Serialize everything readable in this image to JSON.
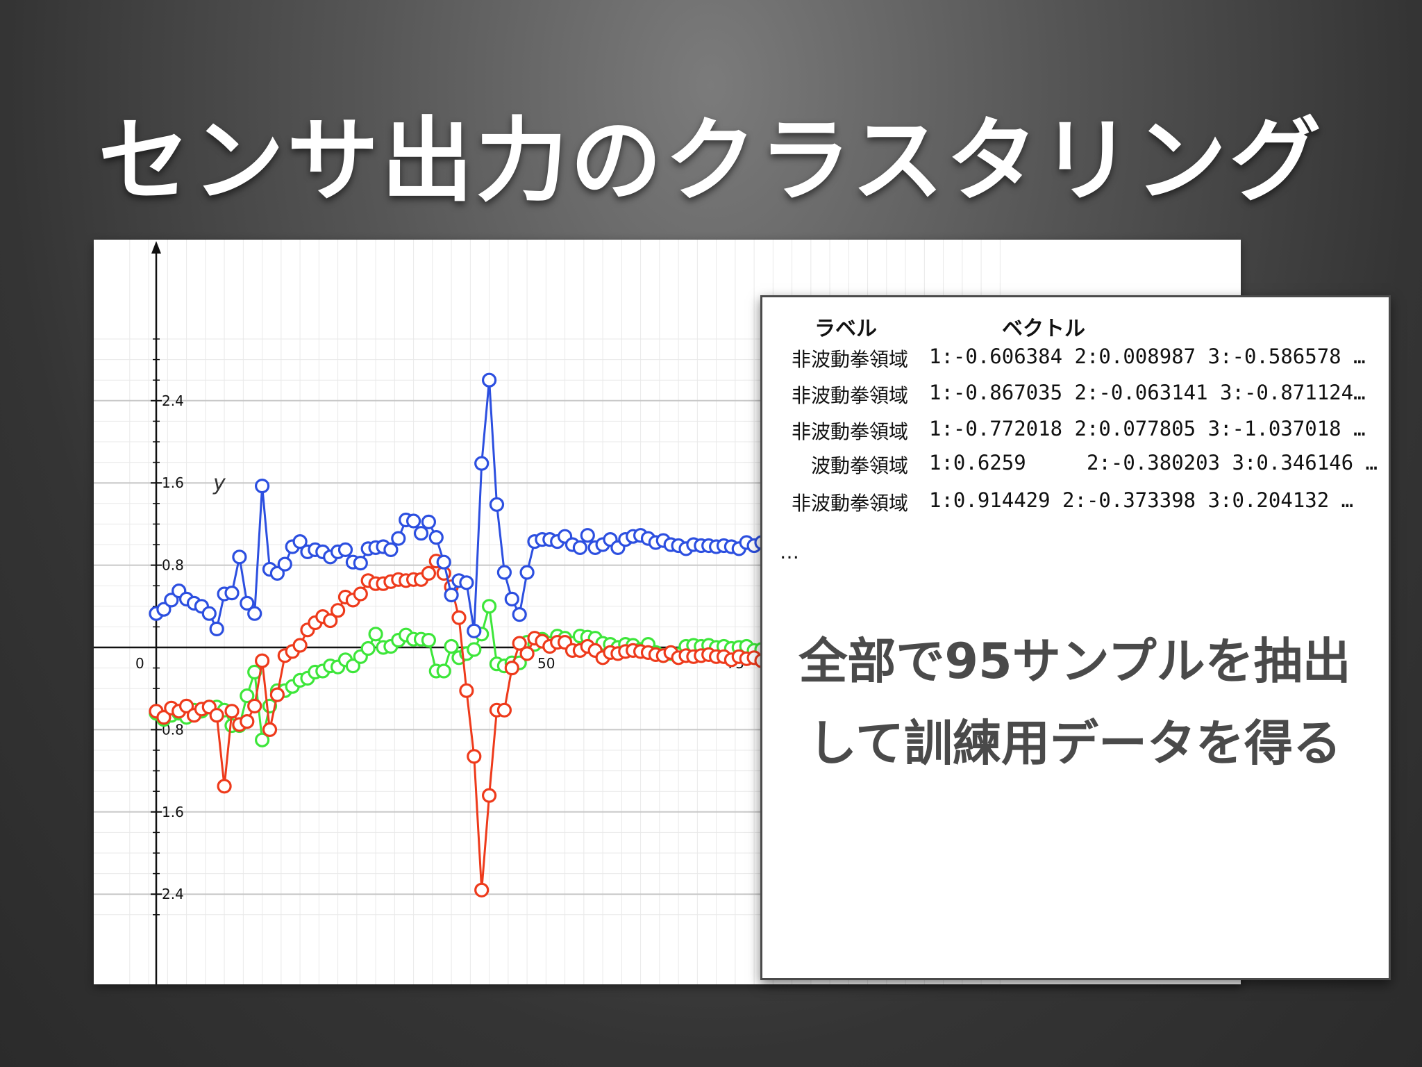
{
  "slide": {
    "title": "センサ出力のクラスタリング"
  },
  "chart_data": {
    "type": "scatter",
    "y_ticks": [
      "2.4",
      "1.6",
      "0.8",
      "0.8",
      "1.6",
      "2.4"
    ],
    "x_tick_labels": [
      "0",
      "50",
      "75"
    ],
    "ylabel": "y",
    "xlim": [
      -3,
      113
    ],
    "ylim": [
      -2.6,
      3.1
    ],
    "grid": true,
    "colors": {
      "blue": "#2c4fe0",
      "red": "#ee3a1b",
      "green": "#3de63a"
    },
    "series": [
      {
        "color": "#2c4fe0",
        "points": [
          [
            0,
            0.33
          ],
          [
            1,
            0.37
          ],
          [
            2,
            0.46
          ],
          [
            3,
            0.55
          ],
          [
            4,
            0.47
          ],
          [
            5,
            0.43
          ],
          [
            6,
            0.4
          ],
          [
            7,
            0.33
          ],
          [
            8,
            0.18
          ],
          [
            9,
            0.52
          ],
          [
            10,
            0.53
          ],
          [
            11,
            0.88
          ],
          [
            12,
            0.43
          ],
          [
            13,
            0.33
          ],
          [
            14,
            1.57
          ],
          [
            15,
            0.76
          ],
          [
            16,
            0.72
          ],
          [
            17,
            0.81
          ],
          [
            18,
            0.98
          ],
          [
            19,
            1.03
          ],
          [
            20,
            0.93
          ],
          [
            21,
            0.95
          ],
          [
            22,
            0.93
          ],
          [
            23,
            0.88
          ],
          [
            24,
            0.93
          ],
          [
            25,
            0.95
          ],
          [
            26,
            0.83
          ],
          [
            27,
            0.82
          ],
          [
            28,
            0.96
          ],
          [
            29,
            0.97
          ],
          [
            30,
            0.98
          ],
          [
            31,
            0.95
          ],
          [
            32,
            1.06
          ],
          [
            33,
            1.24
          ],
          [
            34,
            1.23
          ],
          [
            35,
            1.11
          ],
          [
            36,
            1.22
          ],
          [
            37,
            1.07
          ],
          [
            38,
            0.83
          ],
          [
            39,
            0.51
          ],
          [
            40,
            0.65
          ],
          [
            41,
            0.63
          ],
          [
            42,
            0.16
          ],
          [
            43,
            1.79
          ],
          [
            44,
            2.6
          ],
          [
            45,
            1.39
          ],
          [
            46,
            0.73
          ],
          [
            47,
            0.47
          ],
          [
            48,
            0.32
          ],
          [
            49,
            0.73
          ],
          [
            50,
            1.03
          ],
          [
            51,
            1.05
          ],
          [
            52,
            1.05
          ],
          [
            53,
            1.03
          ],
          [
            54,
            1.08
          ],
          [
            55,
            1.0
          ],
          [
            56,
            0.97
          ],
          [
            57,
            1.09
          ],
          [
            58,
            0.97
          ],
          [
            59,
            1.0
          ],
          [
            60,
            1.05
          ],
          [
            61,
            0.97
          ],
          [
            62,
            1.05
          ],
          [
            63,
            1.08
          ],
          [
            64,
            1.09
          ],
          [
            65,
            1.06
          ],
          [
            66,
            1.02
          ],
          [
            67,
            1.04
          ],
          [
            68,
            1.0
          ],
          [
            69,
            0.99
          ],
          [
            70,
            0.96
          ],
          [
            71,
            1.0
          ],
          [
            72,
            0.99
          ],
          [
            73,
            0.99
          ],
          [
            74,
            0.98
          ],
          [
            75,
            0.99
          ],
          [
            76,
            0.98
          ],
          [
            77,
            0.96
          ],
          [
            78,
            1.02
          ],
          [
            79,
            0.99
          ],
          [
            80,
            1.02
          ]
        ]
      },
      {
        "color": "#ee3a1b",
        "points": [
          [
            0,
            -0.62
          ],
          [
            1,
            -0.68
          ],
          [
            2,
            -0.59
          ],
          [
            3,
            -0.62
          ],
          [
            4,
            -0.57
          ],
          [
            5,
            -0.66
          ],
          [
            6,
            -0.6
          ],
          [
            7,
            -0.58
          ],
          [
            8,
            -0.66
          ],
          [
            9,
            -1.35
          ],
          [
            10,
            -0.62
          ],
          [
            11,
            -0.75
          ],
          [
            12,
            -0.72
          ],
          [
            13,
            -0.57
          ],
          [
            14,
            -0.13
          ],
          [
            15,
            -0.8
          ],
          [
            16,
            -0.46
          ],
          [
            17,
            -0.08
          ],
          [
            18,
            -0.04
          ],
          [
            19,
            0.02
          ],
          [
            20,
            0.17
          ],
          [
            21,
            0.24
          ],
          [
            22,
            0.3
          ],
          [
            23,
            0.26
          ],
          [
            24,
            0.36
          ],
          [
            25,
            0.49
          ],
          [
            26,
            0.46
          ],
          [
            27,
            0.52
          ],
          [
            28,
            0.65
          ],
          [
            29,
            0.62
          ],
          [
            30,
            0.62
          ],
          [
            31,
            0.64
          ],
          [
            32,
            0.66
          ],
          [
            33,
            0.65
          ],
          [
            34,
            0.66
          ],
          [
            35,
            0.66
          ],
          [
            36,
            0.72
          ],
          [
            37,
            0.84
          ],
          [
            38,
            0.72
          ],
          [
            39,
            0.59
          ],
          [
            40,
            0.29
          ],
          [
            41,
            -0.42
          ],
          [
            42,
            -1.06
          ],
          [
            43,
            -2.36
          ],
          [
            44,
            -1.44
          ],
          [
            45,
            -0.61
          ],
          [
            46,
            -0.61
          ],
          [
            47,
            -0.2
          ],
          [
            48,
            0.04
          ],
          [
            49,
            -0.06
          ],
          [
            50,
            0.09
          ],
          [
            51,
            0.06
          ],
          [
            52,
            0.01
          ],
          [
            53,
            0.05
          ],
          [
            54,
            0.05
          ],
          [
            55,
            -0.03
          ],
          [
            56,
            -0.03
          ],
          [
            57,
            0.01
          ],
          [
            58,
            -0.03
          ],
          [
            59,
            -0.1
          ],
          [
            60,
            -0.05
          ],
          [
            61,
            -0.06
          ],
          [
            62,
            -0.04
          ],
          [
            63,
            -0.03
          ],
          [
            64,
            -0.04
          ],
          [
            65,
            -0.05
          ],
          [
            66,
            -0.07
          ],
          [
            67,
            -0.08
          ],
          [
            68,
            -0.05
          ],
          [
            69,
            -0.1
          ],
          [
            70,
            -0.08
          ],
          [
            71,
            -0.09
          ],
          [
            72,
            -0.08
          ],
          [
            73,
            -0.07
          ],
          [
            74,
            -0.09
          ],
          [
            75,
            -0.09
          ],
          [
            76,
            -0.12
          ],
          [
            77,
            -0.09
          ],
          [
            78,
            -0.11
          ],
          [
            79,
            -0.1
          ],
          [
            80,
            -0.13
          ]
        ]
      },
      {
        "color": "#3de63a",
        "points": [
          [
            0,
            -0.64
          ],
          [
            1,
            -0.7
          ],
          [
            2,
            -0.66
          ],
          [
            3,
            -0.64
          ],
          [
            4,
            -0.68
          ],
          [
            5,
            -0.61
          ],
          [
            6,
            -0.62
          ],
          [
            7,
            -0.58
          ],
          [
            8,
            -0.58
          ],
          [
            9,
            -0.61
          ],
          [
            10,
            -0.76
          ],
          [
            11,
            -0.76
          ],
          [
            12,
            -0.47
          ],
          [
            13,
            -0.24
          ],
          [
            14,
            -0.9
          ],
          [
            15,
            -0.57
          ],
          [
            16,
            -0.42
          ],
          [
            17,
            -0.42
          ],
          [
            18,
            -0.38
          ],
          [
            19,
            -0.32
          ],
          [
            20,
            -0.3
          ],
          [
            21,
            -0.24
          ],
          [
            22,
            -0.23
          ],
          [
            23,
            -0.18
          ],
          [
            24,
            -0.19
          ],
          [
            25,
            -0.12
          ],
          [
            26,
            -0.18
          ],
          [
            27,
            -0.09
          ],
          [
            28,
            -0.01
          ],
          [
            29,
            0.13
          ],
          [
            30,
            0.0
          ],
          [
            31,
            0.01
          ],
          [
            32,
            0.07
          ],
          [
            33,
            0.12
          ],
          [
            34,
            0.08
          ],
          [
            35,
            0.08
          ],
          [
            36,
            0.07
          ],
          [
            37,
            -0.23
          ],
          [
            38,
            -0.23
          ],
          [
            39,
            0.01
          ],
          [
            40,
            -0.1
          ],
          [
            41,
            -0.06
          ],
          [
            42,
            -0.02
          ],
          [
            43,
            0.13
          ],
          [
            44,
            0.4
          ],
          [
            45,
            -0.16
          ],
          [
            46,
            -0.18
          ],
          [
            47,
            -0.15
          ],
          [
            48,
            -0.15
          ],
          [
            49,
            0.05
          ],
          [
            50,
            0.03
          ],
          [
            51,
            0.08
          ],
          [
            52,
            0.04
          ],
          [
            53,
            0.11
          ],
          [
            54,
            0.09
          ],
          [
            55,
            0.04
          ],
          [
            56,
            0.11
          ],
          [
            57,
            0.1
          ],
          [
            58,
            0.09
          ],
          [
            59,
            0.04
          ],
          [
            60,
            0.03
          ],
          [
            61,
            0.0
          ],
          [
            62,
            0.03
          ],
          [
            63,
            0.02
          ],
          [
            64,
            -0.02
          ],
          [
            65,
            0.03
          ],
          [
            66,
            -0.05
          ],
          [
            67,
            -0.08
          ],
          [
            68,
            -0.06
          ],
          [
            69,
            -0.07
          ],
          [
            70,
            0.01
          ],
          [
            71,
            0.02
          ],
          [
            72,
            0.01
          ],
          [
            73,
            0.02
          ],
          [
            74,
            0.0
          ],
          [
            75,
            0.01
          ],
          [
            76,
            -0.01
          ],
          [
            77,
            0.0
          ],
          [
            78,
            0.01
          ],
          [
            79,
            -0.03
          ],
          [
            80,
            -0.02
          ]
        ]
      }
    ]
  },
  "panel": {
    "headers": {
      "label": "ラベル",
      "vector": "ベクトル"
    },
    "rows": [
      {
        "label": "非波動拳領域",
        "vector": "1:-0.606384 2:0.008987 3:-0.586578 …"
      },
      {
        "label": "非波動拳領域",
        "vector": "1:-0.867035 2:-0.063141 3:-0.871124…"
      },
      {
        "label": "非波動拳領域",
        "vector": "1:-0.772018 2:0.077805 3:-1.037018 …"
      },
      {
        "label": "波動拳領域",
        "vector": "1:0.6259     2:-0.380203 3:0.346146 …"
      },
      {
        "label": "非波動拳領域",
        "vector": "1:0.914429 2:-0.373398 3:0.204132 …"
      }
    ],
    "ellipsis": "…",
    "caption_line1": "全部で95サンプルを抽出",
    "caption_line2": "して訓練用データを得る"
  }
}
